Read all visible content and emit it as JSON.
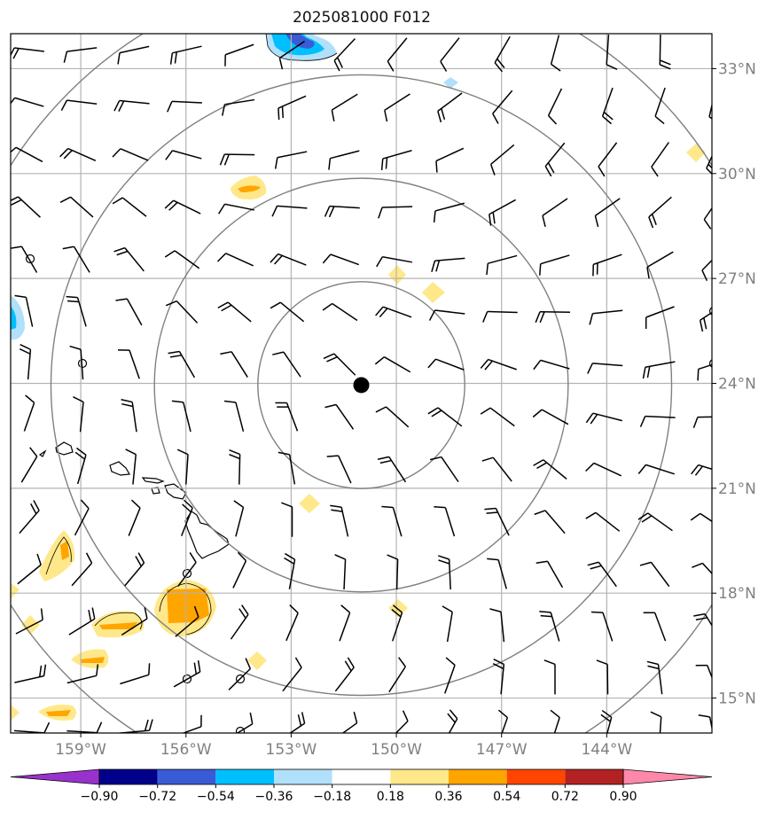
{
  "title": "2025081000 F012",
  "map": {
    "lon_range": [
      -161.0,
      -141.0
    ],
    "lat_range": [
      14.0,
      34.0
    ],
    "lon_ticks": [
      {
        "lon": -159,
        "label": "159°W"
      },
      {
        "lon": -156,
        "label": "156°W"
      },
      {
        "lon": -153,
        "label": "153°W"
      },
      {
        "lon": -150,
        "label": "150°W"
      },
      {
        "lon": -147,
        "label": "147°W"
      },
      {
        "lon": -144,
        "label": "144°W"
      }
    ],
    "lat_ticks": [
      {
        "lat": 33,
        "label": "33°N"
      },
      {
        "lat": 30,
        "label": "30°N"
      },
      {
        "lat": 27,
        "label": "27°N"
      },
      {
        "lat": 24,
        "label": "24°N"
      },
      {
        "lat": 21,
        "label": "21°N"
      },
      {
        "lat": 18,
        "label": "18°N"
      },
      {
        "lat": 15,
        "label": "15°N"
      }
    ],
    "center": {
      "lon": -151.0,
      "lat": 23.95
    },
    "range_ring_radii_deg": [
      2.95,
      5.9,
      8.85,
      11.8
    ],
    "grid_on": true
  },
  "colorbar": {
    "levels": [
      "−0.90",
      "−0.72",
      "−0.54",
      "−0.36",
      "−0.18",
      "0.18",
      "0.36",
      "0.54",
      "0.72",
      "0.90"
    ],
    "colors": [
      "#9932cc",
      "#00008b",
      "#3a5bd6",
      "#00bfff",
      "#b0e0fa",
      "#ffffff",
      "#ffe88a",
      "#ffa500",
      "#ff4500",
      "#b22222",
      "#ff88aa"
    ]
  },
  "colors": {
    "grid": "#b3b3b3",
    "ring": "#808080",
    "barb": "#000000"
  }
}
